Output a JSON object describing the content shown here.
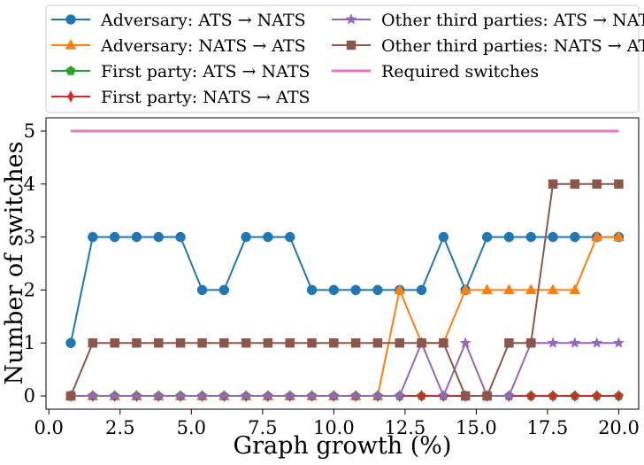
{
  "chart_data": {
    "type": "line",
    "title": "",
    "xlabel": "Graph growth (%)",
    "ylabel": "Number of switches",
    "xlim": [
      -0.1,
      20.7
    ],
    "ylim": [
      -0.25,
      5.25
    ],
    "xticks": [
      0.0,
      2.5,
      5.0,
      7.5,
      10.0,
      12.5,
      15.0,
      17.5,
      20.0
    ],
    "xtick_labels": [
      "0.0",
      "2.5",
      "5.0",
      "7.5",
      "10.0",
      "12.5",
      "15.0",
      "17.5",
      "20.0"
    ],
    "yticks": [
      0,
      1,
      2,
      3,
      4,
      5
    ],
    "ytick_labels": [
      "0",
      "1",
      "2",
      "3",
      "4",
      "5"
    ],
    "grid": false,
    "legend_placement": "top (above plot), two columns",
    "x": [
      0.77,
      1.54,
      2.31,
      3.08,
      3.85,
      4.62,
      5.38,
      6.15,
      6.92,
      7.69,
      8.46,
      9.23,
      10.0,
      10.77,
      11.54,
      12.31,
      13.08,
      13.85,
      14.62,
      15.38,
      16.15,
      16.92,
      17.69,
      18.46,
      19.23,
      20.0
    ],
    "series": [
      {
        "name": "Adversary: ATS → NATS",
        "color": "#1f77b4",
        "marker": "circle",
        "values": [
          1,
          3,
          3,
          3,
          3,
          3,
          2,
          2,
          3,
          3,
          3,
          2,
          2,
          2,
          2,
          2,
          2,
          3,
          2,
          3,
          3,
          3,
          3,
          3,
          3,
          3
        ]
      },
      {
        "name": "Adversary: NATS → ATS",
        "color": "#ff7f0e",
        "marker": "triangle",
        "values": [
          0,
          0,
          0,
          0,
          0,
          0,
          0,
          0,
          0,
          0,
          0,
          0,
          0,
          0,
          0,
          2,
          1,
          1,
          2,
          2,
          2,
          2,
          2,
          2,
          3,
          3
        ]
      },
      {
        "name": "First party: ATS → NATS",
        "color": "#2ca02c",
        "marker": "pentagon",
        "values": [
          0,
          0,
          0,
          0,
          0,
          0,
          0,
          0,
          0,
          0,
          0,
          0,
          0,
          0,
          0,
          0,
          0,
          0,
          0,
          0,
          0,
          0,
          0,
          0,
          0,
          0
        ]
      },
      {
        "name": "First party: NATS → ATS",
        "color": "#d62728",
        "marker": "thin-diamond",
        "values": [
          0,
          0,
          0,
          0,
          0,
          0,
          0,
          0,
          0,
          0,
          0,
          0,
          0,
          0,
          0,
          0,
          0,
          0,
          0,
          0,
          0,
          0,
          0,
          0,
          0,
          0
        ]
      },
      {
        "name": "Other third parties: ATS → NATS",
        "color": "#9467bd",
        "marker": "star",
        "values": [
          0,
          0,
          0,
          0,
          0,
          0,
          0,
          0,
          0,
          0,
          0,
          0,
          0,
          0,
          0,
          0,
          1,
          0,
          1,
          0,
          0,
          1,
          1,
          1,
          1,
          1
        ]
      },
      {
        "name": "Other third parties: NATS → ATS",
        "color": "#8c564b",
        "marker": "square",
        "values": [
          0,
          1,
          1,
          1,
          1,
          1,
          1,
          1,
          1,
          1,
          1,
          1,
          1,
          1,
          1,
          1,
          1,
          1,
          0,
          0,
          1,
          1,
          4,
          4,
          4,
          4
        ]
      },
      {
        "name": "Required switches",
        "color": "#e377c2",
        "marker": "none",
        "x": [
          0.77,
          20.0
        ],
        "values": [
          5,
          5
        ]
      }
    ]
  }
}
